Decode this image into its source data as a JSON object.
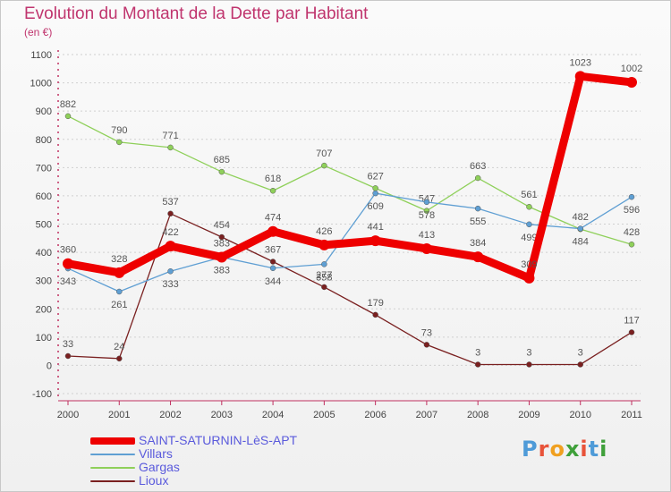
{
  "header": {
    "title": "Evolution du Montant de la Dette par Habitant",
    "subtitle": "(en €)"
  },
  "logo": {
    "text": "Proxiti",
    "letter_colors": [
      "#4f9bd8",
      "#e8533a",
      "#f0a020",
      "#3fa03a",
      "#e8533a",
      "#4f9bd8",
      "#3fa03a"
    ]
  },
  "chart_data": {
    "type": "line",
    "title": "Evolution du Montant de la Dette par Habitant",
    "subtitle": "(en €)",
    "xlabel": "",
    "ylabel": "",
    "x": [
      "2000",
      "2001",
      "2002",
      "2003",
      "2004",
      "2005",
      "2006",
      "2007",
      "2008",
      "2009",
      "2010",
      "2011"
    ],
    "ylim": [
      -100,
      1100
    ],
    "yticks": [
      -100,
      0,
      100,
      200,
      300,
      400,
      500,
      600,
      700,
      800,
      900,
      1000,
      1100
    ],
    "grid": "horizontal dotted",
    "legend_position": "bottom-left",
    "series": [
      {
        "name": "SAINT-SATURNIN-LèS-APT",
        "color": "#ee0000",
        "values": [
          360,
          328,
          422,
          383,
          474,
          426,
          441,
          413,
          384,
          309,
          1023,
          1002
        ]
      },
      {
        "name": "Villars",
        "color": "#5f9fd3",
        "values": [
          343,
          261,
          333,
          383,
          344,
          358,
          609,
          578,
          555,
          499,
          484,
          596
        ]
      },
      {
        "name": "Gargas",
        "color": "#8fd05a",
        "values": [
          882,
          790,
          771,
          685,
          618,
          707,
          627,
          547,
          663,
          561,
          482,
          428
        ]
      },
      {
        "name": "Lioux",
        "color": "#7a2020",
        "values": [
          33,
          24,
          537,
          454,
          367,
          277,
          179,
          73,
          3,
          3,
          3,
          117
        ]
      }
    ]
  }
}
